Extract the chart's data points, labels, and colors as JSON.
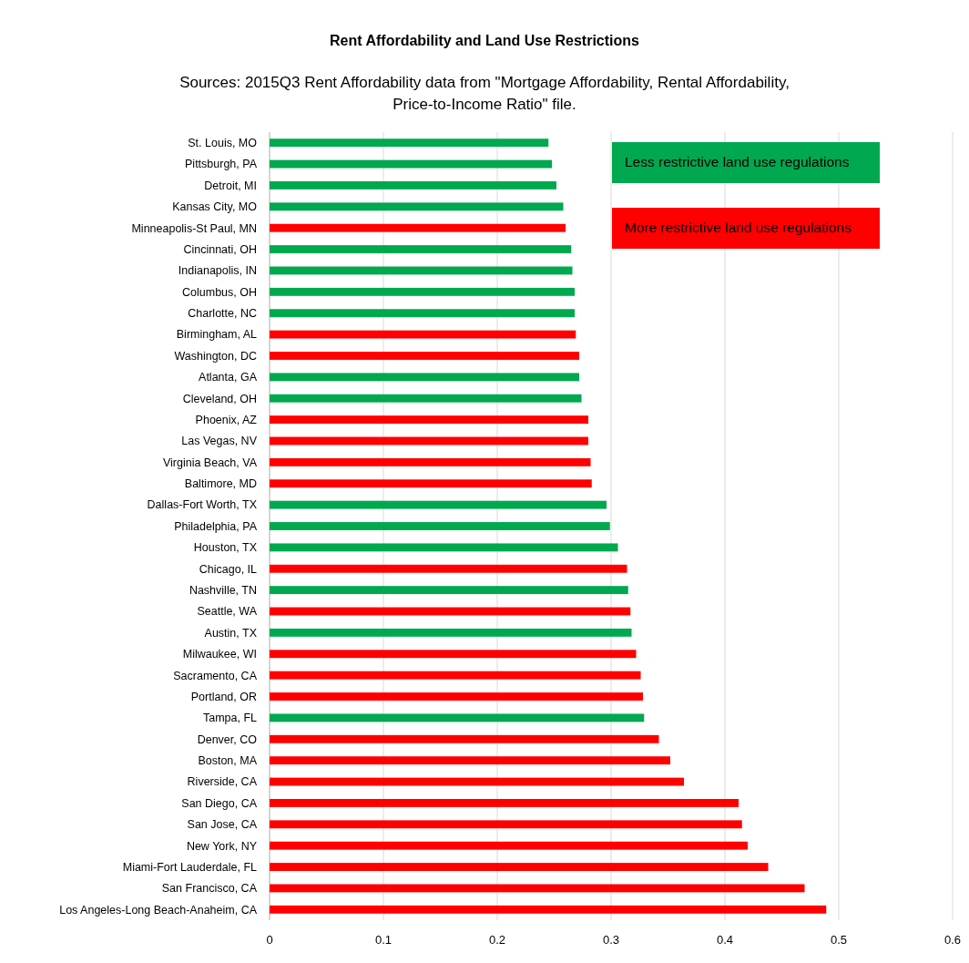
{
  "chart_data": {
    "type": "bar",
    "orientation": "horizontal",
    "title": "Rent Affordability and Land Use Restrictions",
    "subtitle": "Sources: 2015Q3 Rent Affordability data from \"Mortgage Affordability, Rental Affordability, Price-to-Income Ratio\" file.",
    "categories": [
      "St. Louis, MO",
      "Pittsburgh, PA",
      "Detroit, MI",
      "Kansas City, MO",
      "Minneapolis-St Paul, MN",
      "Cincinnati, OH",
      "Indianapolis, IN",
      "Columbus, OH",
      "Charlotte, NC",
      "Birmingham, AL",
      "Washington, DC",
      "Atlanta, GA",
      "Cleveland, OH",
      "Phoenix, AZ",
      "Las Vegas, NV",
      "Virginia Beach, VA",
      "Baltimore, MD",
      "Dallas-Fort Worth, TX",
      "Philadelphia, PA",
      "Houston, TX",
      "Chicago, IL",
      "Nashville, TN",
      "Seattle, WA",
      "Austin, TX",
      "Milwaukee, WI",
      "Sacramento, CA",
      "Portland, OR",
      "Tampa, FL",
      "Denver, CO",
      "Boston, MA",
      "Riverside, CA",
      "San Diego, CA",
      "San Jose, CA",
      "New York, NY",
      "Miami-Fort Lauderdale, FL",
      "San Francisco, CA",
      "Los Angeles-Long Beach-Anaheim, CA"
    ],
    "series": [
      {
        "name": "Less restrictive land use regulations",
        "color": "#00a84f",
        "values": [
          0.245,
          0.248,
          0.252,
          0.258,
          null,
          0.265,
          0.266,
          0.268,
          0.268,
          null,
          null,
          0.272,
          0.274,
          null,
          null,
          null,
          null,
          0.296,
          0.299,
          0.306,
          null,
          0.315,
          null,
          0.318,
          null,
          null,
          null,
          0.329,
          null,
          null,
          null,
          null,
          null,
          null,
          null,
          null,
          null
        ]
      },
      {
        "name": "More restrictive land use regulations",
        "color": "#ff0000",
        "values": [
          null,
          null,
          null,
          null,
          0.26,
          null,
          null,
          null,
          null,
          0.269,
          0.272,
          null,
          null,
          0.28,
          0.28,
          0.282,
          0.283,
          null,
          null,
          null,
          0.314,
          null,
          0.317,
          null,
          0.322,
          0.326,
          0.328,
          null,
          0.342,
          0.352,
          0.364,
          0.412,
          0.415,
          0.42,
          0.438,
          0.47,
          0.489
        ]
      }
    ],
    "xlim": [
      0,
      0.6
    ],
    "xticks": [
      0,
      0.1,
      0.2,
      0.3,
      0.4,
      0.5,
      0.6
    ],
    "grid": "x",
    "legend": "top right"
  }
}
